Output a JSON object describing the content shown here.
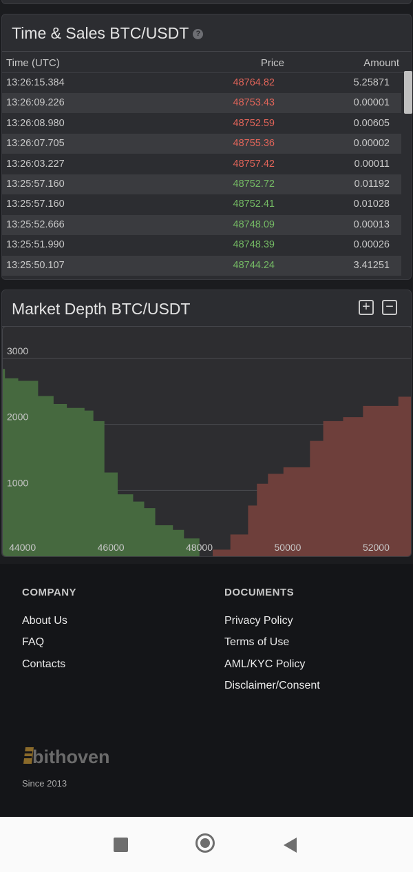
{
  "time_sales": {
    "title": "Time & Sales BTC/USDT",
    "columns": {
      "time": "Time (UTC)",
      "price": "Price",
      "amount": "Amount"
    },
    "rows": [
      {
        "time": "13:26:15.384",
        "price": "48764.82",
        "amount": "5.25871",
        "side": "sell"
      },
      {
        "time": "13:26:09.226",
        "price": "48753.43",
        "amount": "0.00001",
        "side": "sell"
      },
      {
        "time": "13:26:08.980",
        "price": "48752.59",
        "amount": "0.00605",
        "side": "sell"
      },
      {
        "time": "13:26:07.705",
        "price": "48755.36",
        "amount": "0.00002",
        "side": "sell"
      },
      {
        "time": "13:26:03.227",
        "price": "48757.42",
        "amount": "0.00011",
        "side": "sell"
      },
      {
        "time": "13:25:57.160",
        "price": "48752.72",
        "amount": "0.01192",
        "side": "buy"
      },
      {
        "time": "13:25:57.160",
        "price": "48752.41",
        "amount": "0.01028",
        "side": "buy"
      },
      {
        "time": "13:25:52.666",
        "price": "48748.09",
        "amount": "0.00013",
        "side": "buy"
      },
      {
        "time": "13:25:51.990",
        "price": "48748.39",
        "amount": "0.00026",
        "side": "buy"
      },
      {
        "time": "13:25:50.107",
        "price": "48744.24",
        "amount": "3.41251",
        "side": "buy"
      },
      {
        "time": "",
        "price": "",
        "amount": "",
        "side": "buy"
      }
    ]
  },
  "market_depth": {
    "title": "Market Depth BTC/USDT",
    "zoom_in_label": "+",
    "zoom_out_label": "−"
  },
  "chart_data": {
    "type": "area",
    "title": "Market Depth BTC/USDT",
    "xlabel": "",
    "ylabel": "",
    "x_ticks": [
      44000,
      46000,
      48000,
      50000,
      52000
    ],
    "y_ticks": [
      1000,
      2000,
      3000
    ],
    "xlim": [
      43950,
      53200
    ],
    "ylim": [
      0,
      3000
    ],
    "grid": true,
    "colors": {
      "bids": "#46693f",
      "asks": "#6e3f3b",
      "background": "#2d2d30"
    },
    "series": [
      {
        "side": "bids",
        "points": [
          [
            43950,
            2840
          ],
          [
            44000,
            2700
          ],
          [
            44300,
            2660
          ],
          [
            44750,
            2430
          ],
          [
            45100,
            2310
          ],
          [
            45400,
            2250
          ],
          [
            45800,
            2210
          ],
          [
            46000,
            2050
          ],
          [
            46250,
            1270
          ],
          [
            46550,
            940
          ],
          [
            46900,
            830
          ],
          [
            47150,
            730
          ],
          [
            47400,
            470
          ],
          [
            47800,
            400
          ],
          [
            48050,
            270
          ],
          [
            48400,
            0
          ]
        ]
      },
      {
        "side": "asks",
        "points": [
          [
            48500,
            0
          ],
          [
            48700,
            100
          ],
          [
            49100,
            330
          ],
          [
            49500,
            770
          ],
          [
            49700,
            1100
          ],
          [
            49950,
            1250
          ],
          [
            50300,
            1350
          ],
          [
            50900,
            1750
          ],
          [
            51200,
            2050
          ],
          [
            51650,
            2110
          ],
          [
            52100,
            2280
          ],
          [
            52900,
            2420
          ],
          [
            53200,
            2460
          ]
        ]
      }
    ]
  },
  "footer": {
    "company_heading": "COMPANY",
    "company_links": [
      "About Us",
      "FAQ",
      "Contacts"
    ],
    "documents_heading": "DOCUMENTS",
    "document_links": [
      "Privacy Policy",
      "Terms of Use",
      "AML/KYC Policy",
      "Disclaimer/Consent"
    ],
    "logo_text": "bithoven",
    "since": "Since 2013"
  },
  "nav": {
    "recents_icon": "square-icon",
    "home_icon": "circle-home-icon",
    "back_icon": "triangle-back-icon"
  }
}
